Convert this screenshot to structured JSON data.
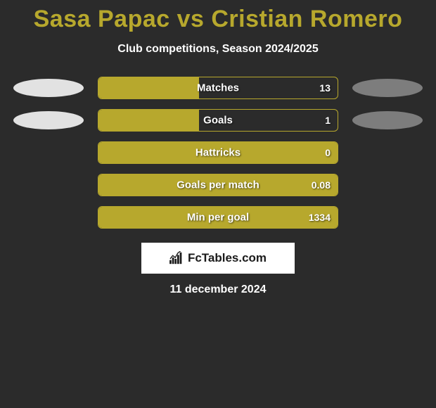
{
  "title": "Sasa Papac vs Cristian Romero",
  "subtitle": "Club competitions, Season 2024/2025",
  "colors": {
    "accent": "#b7a82d",
    "background": "#2b2b2b",
    "text": "#ffffff",
    "ellipse_light": "#e2e2e2",
    "ellipse_dark": "#7d7d7d"
  },
  "stats": [
    {
      "label": "Matches",
      "value": "13",
      "fill_pct": 42,
      "show_ellipses": true
    },
    {
      "label": "Goals",
      "value": "1",
      "fill_pct": 42,
      "show_ellipses": true
    },
    {
      "label": "Hattricks",
      "value": "0",
      "fill_pct": 100,
      "show_ellipses": false
    },
    {
      "label": "Goals per match",
      "value": "0.08",
      "fill_pct": 100,
      "show_ellipses": false
    },
    {
      "label": "Min per goal",
      "value": "1334",
      "fill_pct": 100,
      "show_ellipses": false
    }
  ],
  "brand": "FcTables.com",
  "date": "11 december 2024"
}
